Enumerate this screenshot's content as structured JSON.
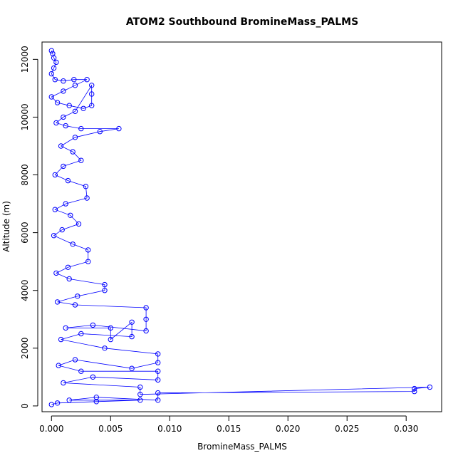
{
  "chart_data": {
    "type": "scatter",
    "title": "ATOM2 Southbound BromineMass_PALMS",
    "xlabel": "BromineMass_PALMS",
    "ylabel": "Altitude (m)",
    "xlim": [
      -0.0008,
      0.033
    ],
    "ylim": [
      -200,
      12600
    ],
    "x_ticks": [
      0.0,
      0.005,
      0.01,
      0.015,
      0.02,
      0.025,
      0.03
    ],
    "x_tick_labels": [
      "0.000",
      "0.005",
      "0.010",
      "0.015",
      "0.020",
      "0.025",
      "0.030"
    ],
    "y_ticks": [
      0,
      2000,
      4000,
      6000,
      8000,
      10000,
      12000
    ],
    "y_tick_labels": [
      "0",
      "2000",
      "4000",
      "6000",
      "8000",
      "10000",
      "12000"
    ],
    "grid": false,
    "legend": "none",
    "marker": "open-circle",
    "connected_by_lines": true,
    "color": "#0000ff",
    "series": [
      {
        "points": [
          [
            0.0,
            12300
          ],
          [
            0.0001,
            12200
          ],
          [
            0.0002,
            12050
          ],
          [
            0.0004,
            11900
          ],
          [
            0.0002,
            11700
          ],
          [
            0.0,
            11500
          ],
          [
            0.0003,
            11300
          ],
          [
            0.001,
            11250
          ],
          [
            0.0019,
            11300
          ],
          [
            0.003,
            11300
          ],
          [
            0.002,
            11100
          ],
          [
            0.001,
            10900
          ],
          [
            0.0,
            10700
          ],
          [
            0.0005,
            10500
          ],
          [
            0.0015,
            10400
          ],
          [
            0.0027,
            10300
          ],
          [
            0.0034,
            10400
          ],
          [
            0.0034,
            10800
          ],
          [
            0.0034,
            11100
          ],
          [
            0.002,
            10200
          ],
          [
            0.001,
            10000
          ],
          [
            0.0004,
            9800
          ],
          [
            0.0012,
            9700
          ],
          [
            0.0025,
            9600
          ],
          [
            0.0057,
            9600
          ],
          [
            0.0041,
            9500
          ],
          [
            0.002,
            9300
          ],
          [
            0.0008,
            9000
          ],
          [
            0.0018,
            8800
          ],
          [
            0.0025,
            8500
          ],
          [
            0.001,
            8300
          ],
          [
            0.0003,
            8000
          ],
          [
            0.0014,
            7800
          ],
          [
            0.0029,
            7600
          ],
          [
            0.003,
            7200
          ],
          [
            0.0012,
            7000
          ],
          [
            0.0003,
            6800
          ],
          [
            0.0016,
            6600
          ],
          [
            0.0023,
            6300
          ],
          [
            0.0009,
            6100
          ],
          [
            0.0002,
            5900
          ],
          [
            0.0018,
            5600
          ],
          [
            0.0031,
            5400
          ],
          [
            0.0031,
            5000
          ],
          [
            0.0014,
            4800
          ],
          [
            0.0004,
            4600
          ],
          [
            0.0015,
            4400
          ],
          [
            0.0045,
            4200
          ],
          [
            0.0045,
            4000
          ],
          [
            0.0022,
            3800
          ],
          [
            0.0005,
            3600
          ],
          [
            0.002,
            3500
          ],
          [
            0.008,
            3400
          ],
          [
            0.008,
            3000
          ],
          [
            0.008,
            2600
          ],
          [
            0.0035,
            2800
          ],
          [
            0.0012,
            2700
          ],
          [
            0.005,
            2700
          ],
          [
            0.005,
            2300
          ],
          [
            0.0068,
            2900
          ],
          [
            0.0068,
            2400
          ],
          [
            0.0025,
            2500
          ],
          [
            0.0008,
            2300
          ],
          [
            0.0045,
            2000
          ],
          [
            0.009,
            1800
          ],
          [
            0.009,
            1500
          ],
          [
            0.0068,
            1300
          ],
          [
            0.002,
            1600
          ],
          [
            0.0006,
            1400
          ],
          [
            0.0025,
            1200
          ],
          [
            0.009,
            1200
          ],
          [
            0.009,
            900
          ],
          [
            0.0035,
            1000
          ],
          [
            0.001,
            800
          ],
          [
            0.0075,
            650
          ],
          [
            0.0075,
            400
          ],
          [
            0.032,
            650
          ],
          [
            0.0307,
            600
          ],
          [
            0.0307,
            500
          ],
          [
            0.009,
            450
          ],
          [
            0.009,
            200
          ],
          [
            0.0038,
            300
          ],
          [
            0.0015,
            200
          ],
          [
            0.0075,
            200
          ],
          [
            0.0038,
            150
          ],
          [
            0.0005,
            100
          ],
          [
            0.0,
            50
          ]
        ]
      }
    ]
  }
}
